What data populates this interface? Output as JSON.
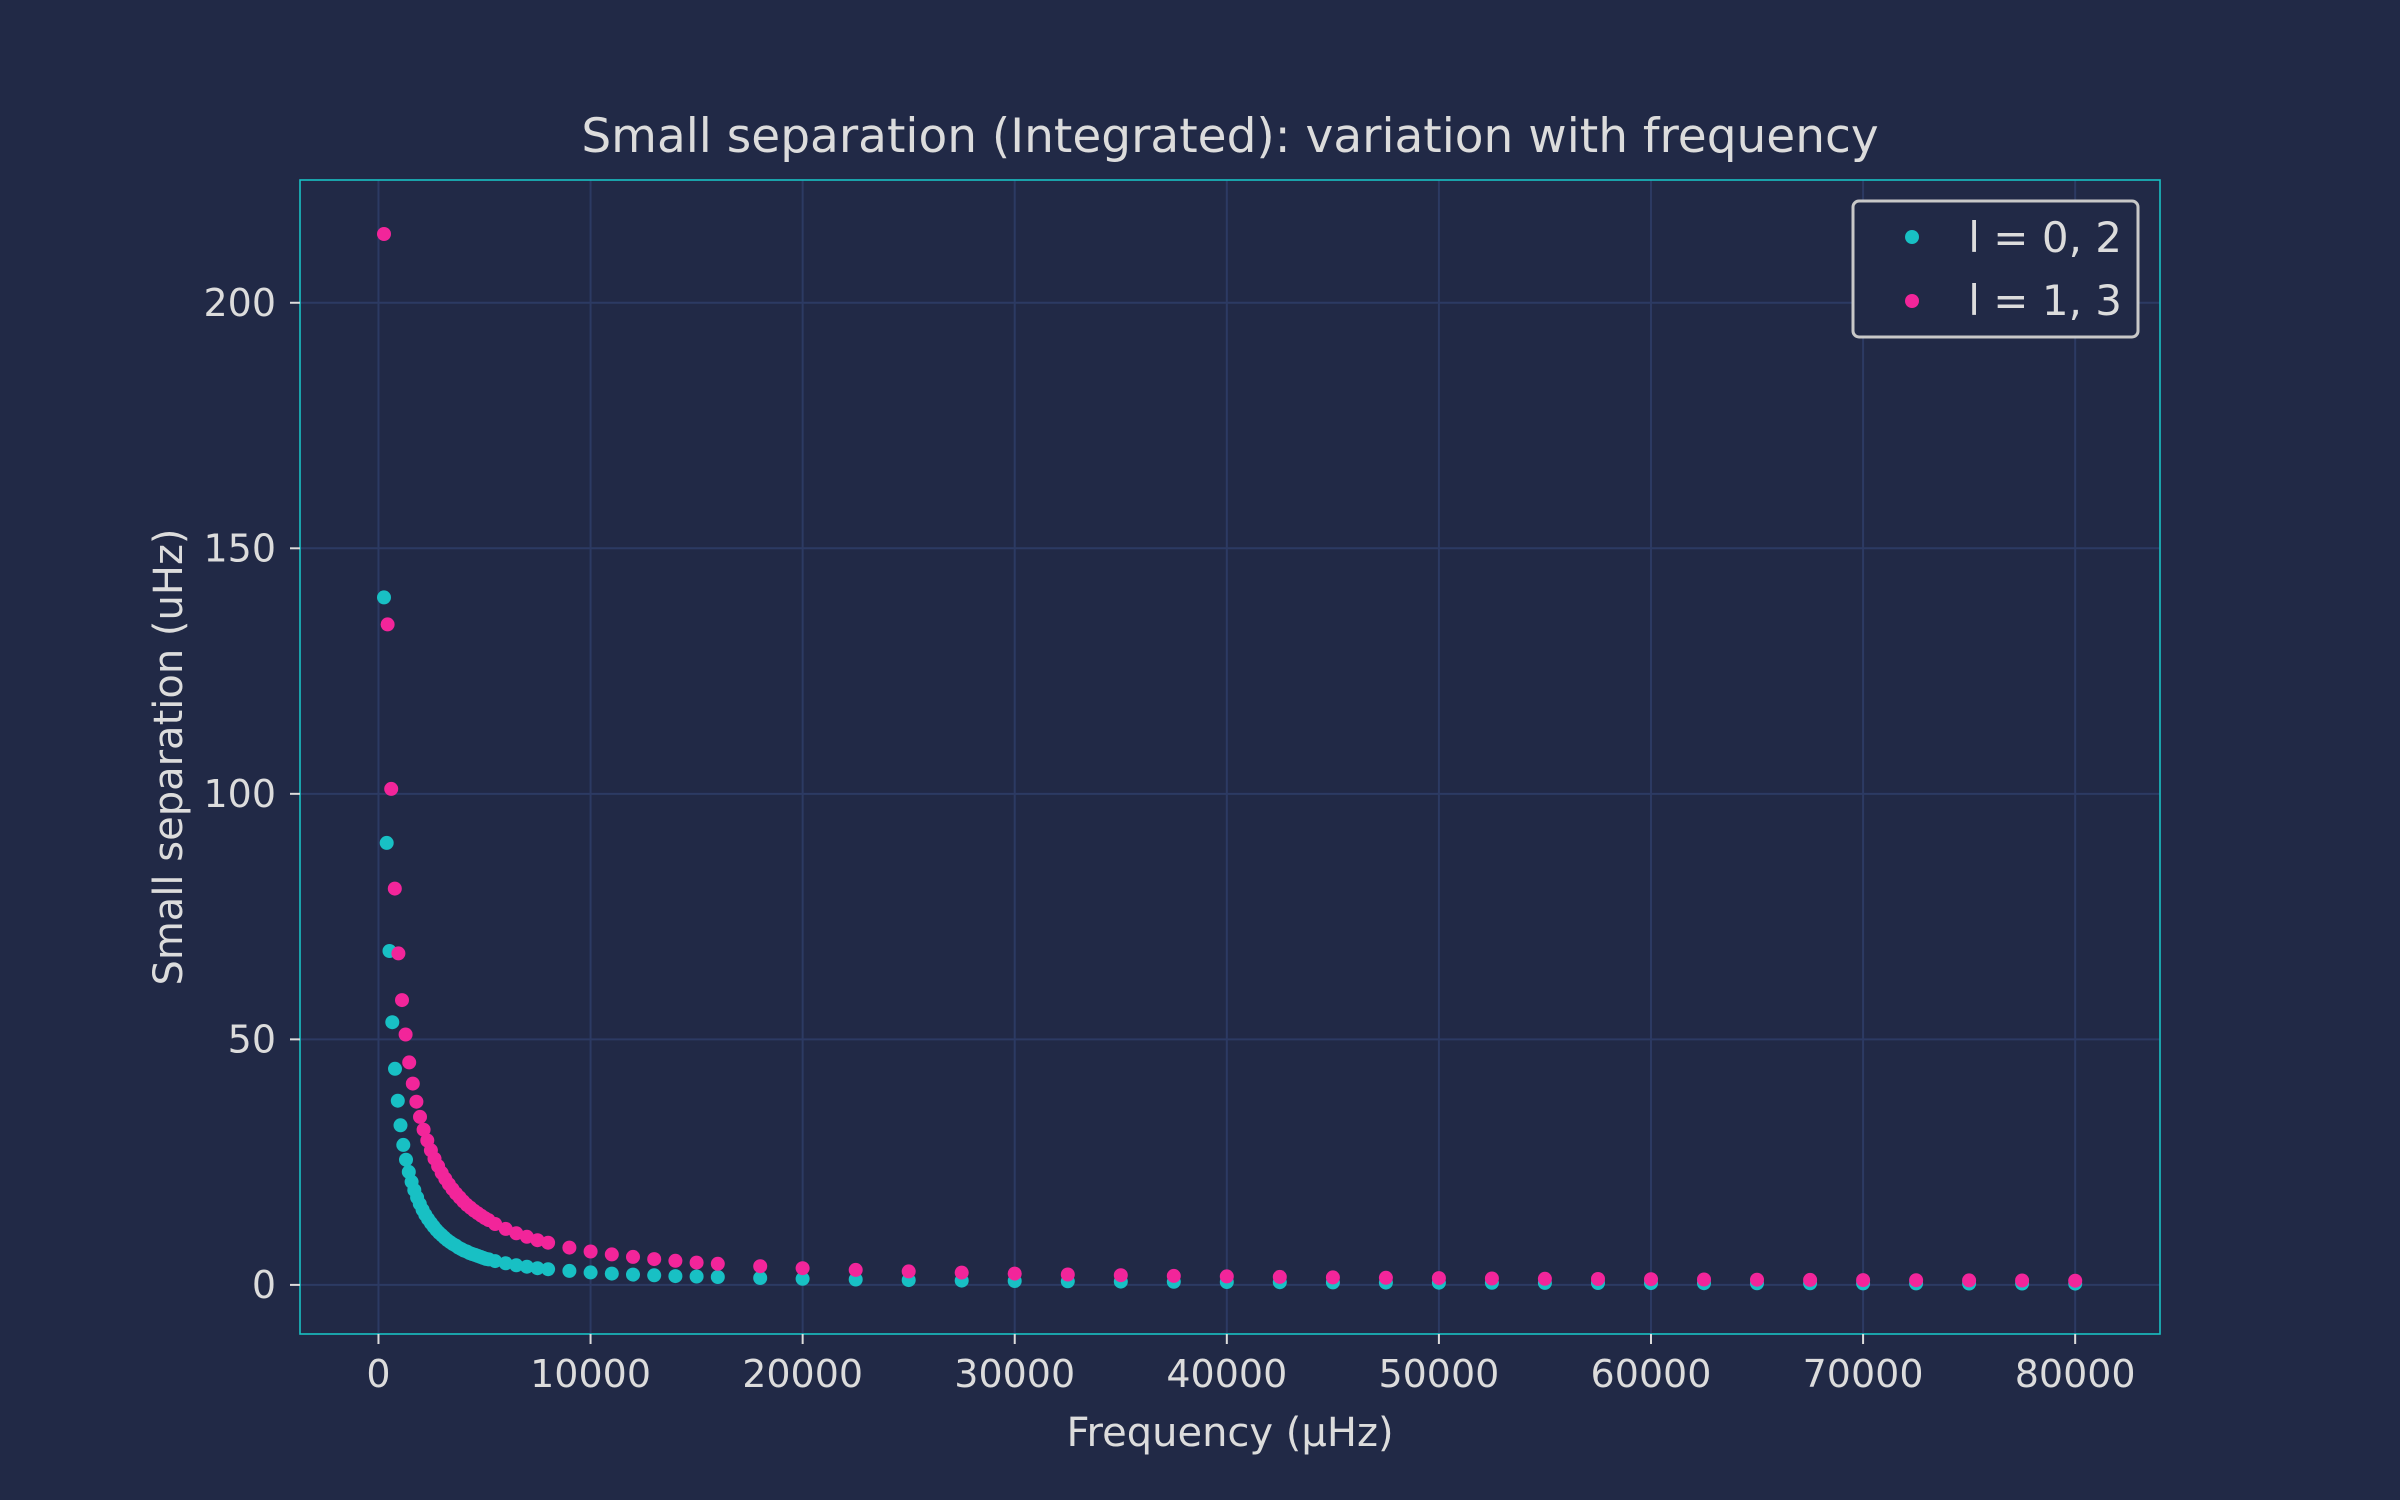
{
  "chart_data": {
    "type": "scatter",
    "title": "Small separation (Integrated): variation with frequency",
    "xlabel": "Frequency (μHz)",
    "ylabel": "Small separation (uHz)",
    "xlim": [
      -3700,
      84000
    ],
    "ylim": [
      -10,
      225
    ],
    "xticks": [
      0,
      10000,
      20000,
      30000,
      40000,
      50000,
      60000,
      70000,
      80000
    ],
    "yticks": [
      0,
      50,
      100,
      150,
      200
    ],
    "grid": true,
    "legend_position": "top-right",
    "series": [
      {
        "name": "l = 0, 2",
        "color": "#18c0c4",
        "x": [
          260,
          390,
          520,
          650,
          780,
          910,
          1040,
          1170,
          1300,
          1430,
          1560,
          1690,
          1820,
          1950,
          2080,
          2210,
          2340,
          2470,
          2600,
          2730,
          2860,
          2990,
          3120,
          3250,
          3380,
          3510,
          3640,
          3770,
          3900,
          4030,
          4160,
          4290,
          4420,
          4550,
          4680,
          4810,
          4940,
          5070,
          5200,
          5500,
          6000,
          6500,
          7000,
          7500,
          8000,
          9000,
          10000,
          11000,
          12000,
          13000,
          14000,
          15000,
          16000,
          18000,
          20000,
          22500,
          25000,
          27500,
          30000,
          32500,
          35000,
          37500,
          40000,
          42500,
          45000,
          47500,
          50000,
          52500,
          55000,
          57500,
          60000,
          62500,
          65000,
          67500,
          70000,
          72500,
          75000,
          77500,
          80000
        ],
        "y": [
          140,
          90,
          68,
          53.5,
          44,
          37.5,
          32.5,
          28.5,
          25.5,
          23,
          21,
          19.3,
          17.8,
          16.5,
          15.3,
          14.3,
          13.4,
          12.6,
          11.9,
          11.2,
          10.6,
          10.1,
          9.6,
          9.1,
          8.7,
          8.3,
          8.0,
          7.6,
          7.3,
          7.0,
          6.8,
          6.5,
          6.3,
          6.1,
          5.9,
          5.7,
          5.5,
          5.3,
          5.2,
          4.85,
          4.4,
          4.0,
          3.7,
          3.4,
          3.2,
          2.85,
          2.55,
          2.3,
          2.1,
          1.95,
          1.8,
          1.7,
          1.6,
          1.4,
          1.25,
          1.1,
          0.98,
          0.88,
          0.8,
          0.74,
          0.68,
          0.63,
          0.58,
          0.54,
          0.5,
          0.47,
          0.44,
          0.42,
          0.4,
          0.38,
          0.36,
          0.35,
          0.33,
          0.32,
          0.31,
          0.3,
          0.29,
          0.28,
          0.27
        ]
      },
      {
        "name": "l = 1, 3",
        "color": "#f2259a",
        "x": [
          260,
          430,
          600,
          770,
          940,
          1110,
          1280,
          1450,
          1620,
          1790,
          1960,
          2130,
          2300,
          2470,
          2640,
          2810,
          2980,
          3150,
          3320,
          3490,
          3660,
          3830,
          4000,
          4170,
          4340,
          4510,
          4680,
          4850,
          5020,
          5190,
          5500,
          6000,
          6500,
          7000,
          7500,
          8000,
          9000,
          10000,
          11000,
          12000,
          13000,
          14000,
          15000,
          16000,
          18000,
          20000,
          22500,
          25000,
          27500,
          30000,
          32500,
          35000,
          37500,
          40000,
          42500,
          45000,
          47500,
          50000,
          52500,
          55000,
          57500,
          60000,
          62500,
          65000,
          67500,
          70000,
          72500,
          75000,
          77500,
          80000
        ],
        "y": [
          214,
          134.5,
          101,
          80.7,
          67.5,
          58,
          51,
          45.3,
          41,
          37.3,
          34.2,
          31.6,
          29.4,
          27.4,
          25.7,
          24.2,
          22.8,
          21.6,
          20.5,
          19.5,
          18.6,
          17.8,
          17.0,
          16.3,
          15.7,
          15.1,
          14.6,
          14.1,
          13.6,
          13.2,
          12.4,
          11.4,
          10.5,
          9.8,
          9.1,
          8.6,
          7.6,
          6.8,
          6.2,
          5.7,
          5.25,
          4.9,
          4.55,
          4.3,
          3.8,
          3.4,
          3.05,
          2.75,
          2.5,
          2.3,
          2.12,
          1.97,
          1.84,
          1.72,
          1.62,
          1.53,
          1.45,
          1.38,
          1.31,
          1.25,
          1.2,
          1.15,
          1.1,
          1.06,
          1.02,
          0.98,
          0.95,
          0.92,
          0.89,
          0.86
        ]
      }
    ]
  }
}
